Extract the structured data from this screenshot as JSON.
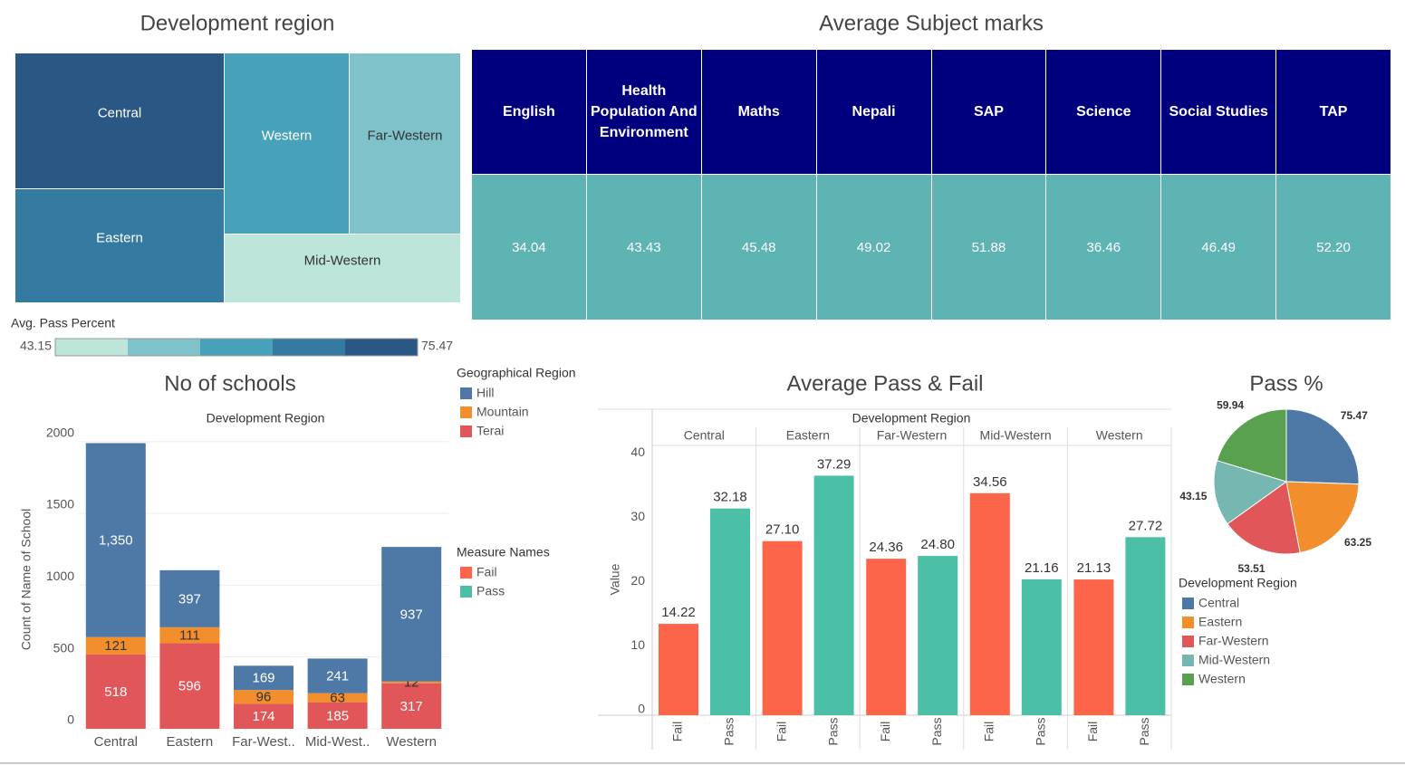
{
  "table": {
    "title": "Average Subject marks",
    "columns": [
      "English",
      "Health Population And Environment",
      "Maths",
      "Nepali",
      "SAP",
      "Science",
      "Social Studies",
      "TAP"
    ],
    "rows": [
      [
        "34.04",
        "43.43",
        "45.48",
        "49.02",
        "51.88",
        "36.46",
        "46.49",
        "52.20"
      ]
    ]
  },
  "chart_data": [
    {
      "type": "treemap",
      "title": "Development region",
      "categories": [
        "Central",
        "Western",
        "Far-Western",
        "Eastern",
        "Mid-Western"
      ],
      "values": [
        75.47,
        59.94,
        53.51,
        63.25,
        43.15
      ],
      "legend": {
        "title": "Avg. Pass Percent",
        "lim": [
          43.15,
          75.47
        ],
        "colors": [
          "#bde5d9",
          "#80c2c9",
          "#47a2b9",
          "#347aa1",
          "#2b5784"
        ]
      }
    },
    {
      "type": "stacked_bar",
      "title": "No of schools",
      "subtitle": "Development Region",
      "ylabel": "Count of Name of School",
      "categories": [
        "Central",
        "Eastern",
        "Far-West..",
        "Mid-West..",
        "Western"
      ],
      "legend_title": "Geographical Region",
      "series": [
        {
          "name": "Hill",
          "color": "#4e79a7",
          "values": [
            1350,
            397,
            169,
            241,
            937
          ],
          "value_labels": [
            "1,350",
            "397",
            "169",
            "241",
            "937"
          ]
        },
        {
          "name": "Mountain",
          "color": "#f28e2b",
          "values": [
            121,
            111,
            96,
            63,
            12
          ]
        },
        {
          "name": "Terai",
          "color": "#e15759",
          "values": [
            518,
            596,
            174,
            185,
            317
          ]
        }
      ],
      "ylim": [
        0,
        2080
      ],
      "yticks": [
        0,
        500,
        1000,
        1500,
        2000
      ],
      "grid": true
    },
    {
      "type": "grouped_bar",
      "title": "Average Pass & Fail",
      "subtitle": "Development Region",
      "ylabel": "Value",
      "categories": [
        "Central",
        "Eastern",
        "Far-Western",
        "Mid-Western",
        "Western"
      ],
      "legend_title": "Measure Names",
      "series": [
        {
          "name": "Fail",
          "color": "#fc6549",
          "values": [
            14.22,
            27.1,
            24.36,
            34.56,
            21.13
          ],
          "value_labels": [
            "14.22",
            "27.10",
            "24.36",
            "34.56",
            "21.13"
          ]
        },
        {
          "name": "Pass",
          "color": "#4bc0a6",
          "values": [
            32.18,
            37.29,
            24.8,
            21.16,
            27.72
          ],
          "value_labels": [
            "32.18",
            "37.29",
            "24.80",
            "21.16",
            "27.72"
          ]
        }
      ],
      "ylim": [
        0,
        42
      ],
      "yticks": [
        0,
        10,
        20,
        30,
        40
      ]
    },
    {
      "type": "pie",
      "title": "Pass %",
      "legend_title": "Development Region",
      "categories": [
        "Central",
        "Eastern",
        "Far-Western",
        "Mid-Western",
        "Western"
      ],
      "values": [
        75.47,
        63.25,
        53.51,
        43.15,
        59.94
      ],
      "colors": [
        "#4e79a7",
        "#f28e2b",
        "#e15759",
        "#76b7b2",
        "#59a14f"
      ]
    }
  ]
}
